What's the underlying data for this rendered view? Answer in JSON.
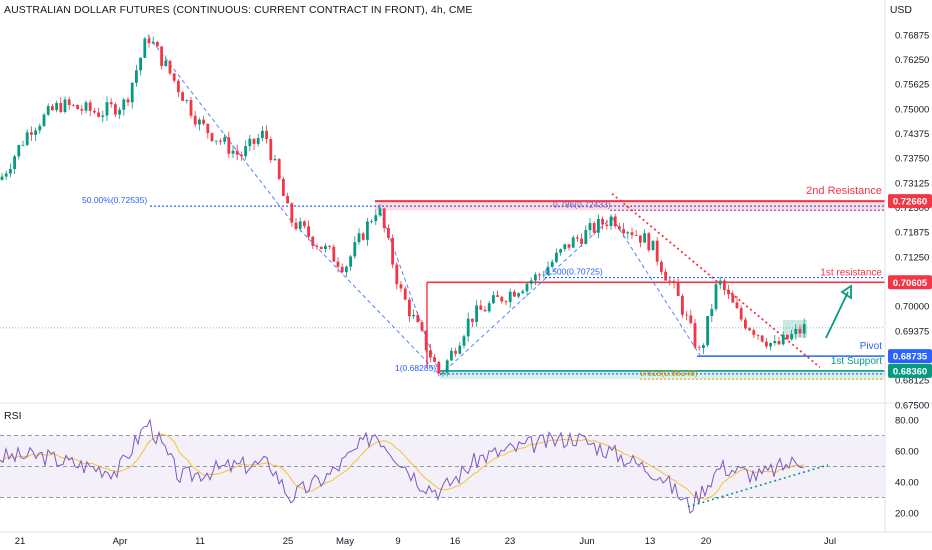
{
  "header": {
    "title": "AUSTRALIAN DOLLAR FUTURES (CONTINUOUS: CURRENT CONTRACT IN FRONT), 4h, CME",
    "currency": "USD"
  },
  "rsi": {
    "label": "RSI",
    "ticks": [
      "80.00",
      "60.00",
      "40.00",
      "20.00"
    ]
  },
  "chart_data": {
    "type": "candlestick",
    "title": "AUSTRALIAN DOLLAR FUTURES (CONTINUOUS: CURRENT CONTRACT IN FRONT), 4h, CME",
    "interval": "4h",
    "ylim": [
      0.6775,
      0.7725
    ],
    "y_ticks": [
      "0.76875",
      "0.76250",
      "0.75625",
      "0.75000",
      "0.74375",
      "0.73750",
      "0.73125",
      "0.72500",
      "0.71875",
      "0.71250",
      "0.70000",
      "0.69375",
      "0.68125",
      "0.67500"
    ],
    "x_ticks": [
      "21",
      "Apr",
      "11",
      "25",
      "May",
      "9",
      "16",
      "23",
      "Jun",
      "13",
      "20",
      "Jul"
    ],
    "price_path": [
      [
        0,
        0.732
      ],
      [
        30,
        0.745
      ],
      [
        60,
        0.751
      ],
      [
        100,
        0.749
      ],
      [
        125,
        0.7515
      ],
      [
        148,
        0.7685
      ],
      [
        200,
        0.746
      ],
      [
        240,
        0.738
      ],
      [
        265,
        0.744
      ],
      [
        290,
        0.722
      ],
      [
        345,
        0.71
      ],
      [
        378,
        0.7255
      ],
      [
        400,
        0.704
      ],
      [
        440,
        0.6825
      ],
      [
        470,
        0.697
      ],
      [
        500,
        0.702
      ],
      [
        540,
        0.708
      ],
      [
        570,
        0.716
      ],
      [
        612,
        0.7225
      ],
      [
        650,
        0.716
      ],
      [
        680,
        0.701
      ],
      [
        700,
        0.6876
      ],
      [
        718,
        0.7066
      ],
      [
        740,
        0.697
      ],
      [
        775,
        0.6897
      ],
      [
        805,
        0.6945
      ]
    ],
    "levels": [
      {
        "label": "2nd Resistance",
        "value": "0.72660",
        "color": "#f23645"
      },
      {
        "label": "1st resistance",
        "value": "0.70605",
        "color": "#f23645"
      },
      {
        "label": "Pivot",
        "value": "0.68735",
        "color": "#2962ff"
      },
      {
        "label": "1st Support",
        "value": "0.68360",
        "color": "#089981"
      }
    ],
    "fib_annotations": [
      {
        "text": "50.00%(0.72535)",
        "value": 0.72535
      },
      {
        "text": "0.786(0.72433)",
        "value": 0.7243
      },
      {
        "text": "0.500(0.70725)",
        "value": 0.70725
      },
      {
        "text": "1(0.68285)",
        "value": 0.68285
      },
      {
        "text": "0.618(0.68148)",
        "value": 0.6815
      }
    ],
    "rsi_path": [
      [
        0,
        56
      ],
      [
        40,
        57
      ],
      [
        80,
        51
      ],
      [
        118,
        47
      ],
      [
        130,
        60
      ],
      [
        148,
        79
      ],
      [
        180,
        43
      ],
      [
        230,
        50
      ],
      [
        270,
        52
      ],
      [
        290,
        30
      ],
      [
        330,
        45
      ],
      [
        375,
        72
      ],
      [
        420,
        40
      ],
      [
        440,
        34
      ],
      [
        480,
        56
      ],
      [
        530,
        64
      ],
      [
        575,
        69
      ],
      [
        620,
        57
      ],
      [
        660,
        45
      ],
      [
        690,
        24
      ],
      [
        720,
        50
      ],
      [
        760,
        44
      ],
      [
        785,
        51
      ],
      [
        805,
        55
      ]
    ],
    "colors": {
      "up": "#089981",
      "down": "#f23645",
      "rsi": "#7e57c2",
      "rsi_ma": "#f4c430"
    }
  }
}
